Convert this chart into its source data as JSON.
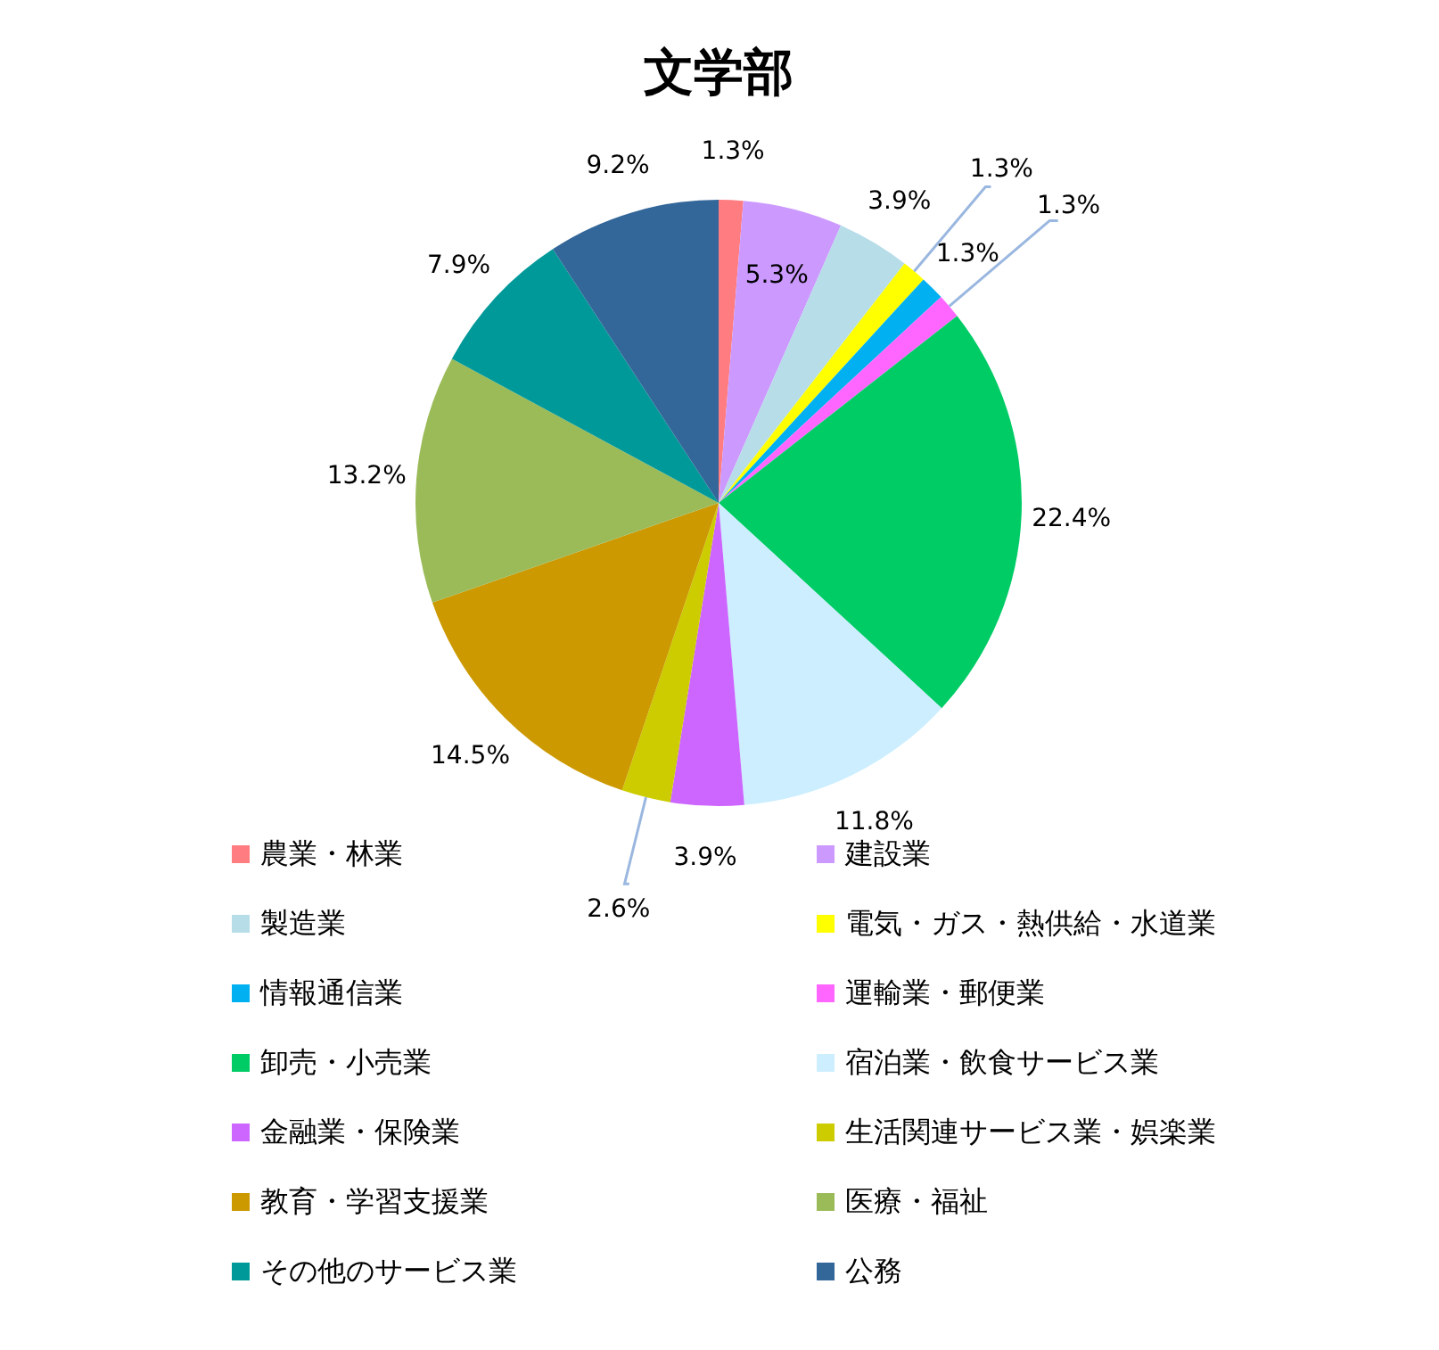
{
  "chart_data": {
    "type": "pie",
    "title": "文学部",
    "categories": [
      "農業・林業",
      "建設業",
      "製造業",
      "電気・ガス・熱供給・水道業",
      "情報通信業",
      "運輸業・郵便業",
      "卸売・小売業",
      "宿泊業・飲食サービス業",
      "金融業・保険業",
      "生活関連サービス業・娯楽業",
      "教育・学習支援業",
      "医療・福祉",
      "その他のサービス業",
      "公務"
    ],
    "values": [
      1.3,
      5.3,
      3.9,
      1.3,
      1.3,
      1.3,
      22.4,
      11.8,
      3.9,
      2.6,
      14.5,
      13.2,
      7.9,
      9.2
    ],
    "value_labels": [
      "1.3%",
      "5.3%",
      "3.9%",
      "1.3%",
      "1.3%",
      "1.3%",
      "22.4%",
      "11.8%",
      "3.9%",
      "2.6%",
      "14.5%",
      "13.2%",
      "7.9%",
      "9.2%"
    ],
    "colors": [
      "#ff7c80",
      "#cc99ff",
      "#b7dde8",
      "#ffff00",
      "#00b0f0",
      "#ff66ff",
      "#00cc66",
      "#cceeff",
      "#cc66ff",
      "#cccc00",
      "#cc9900",
      "#9bbb59",
      "#009999",
      "#336699"
    ],
    "legend": "bottom"
  }
}
